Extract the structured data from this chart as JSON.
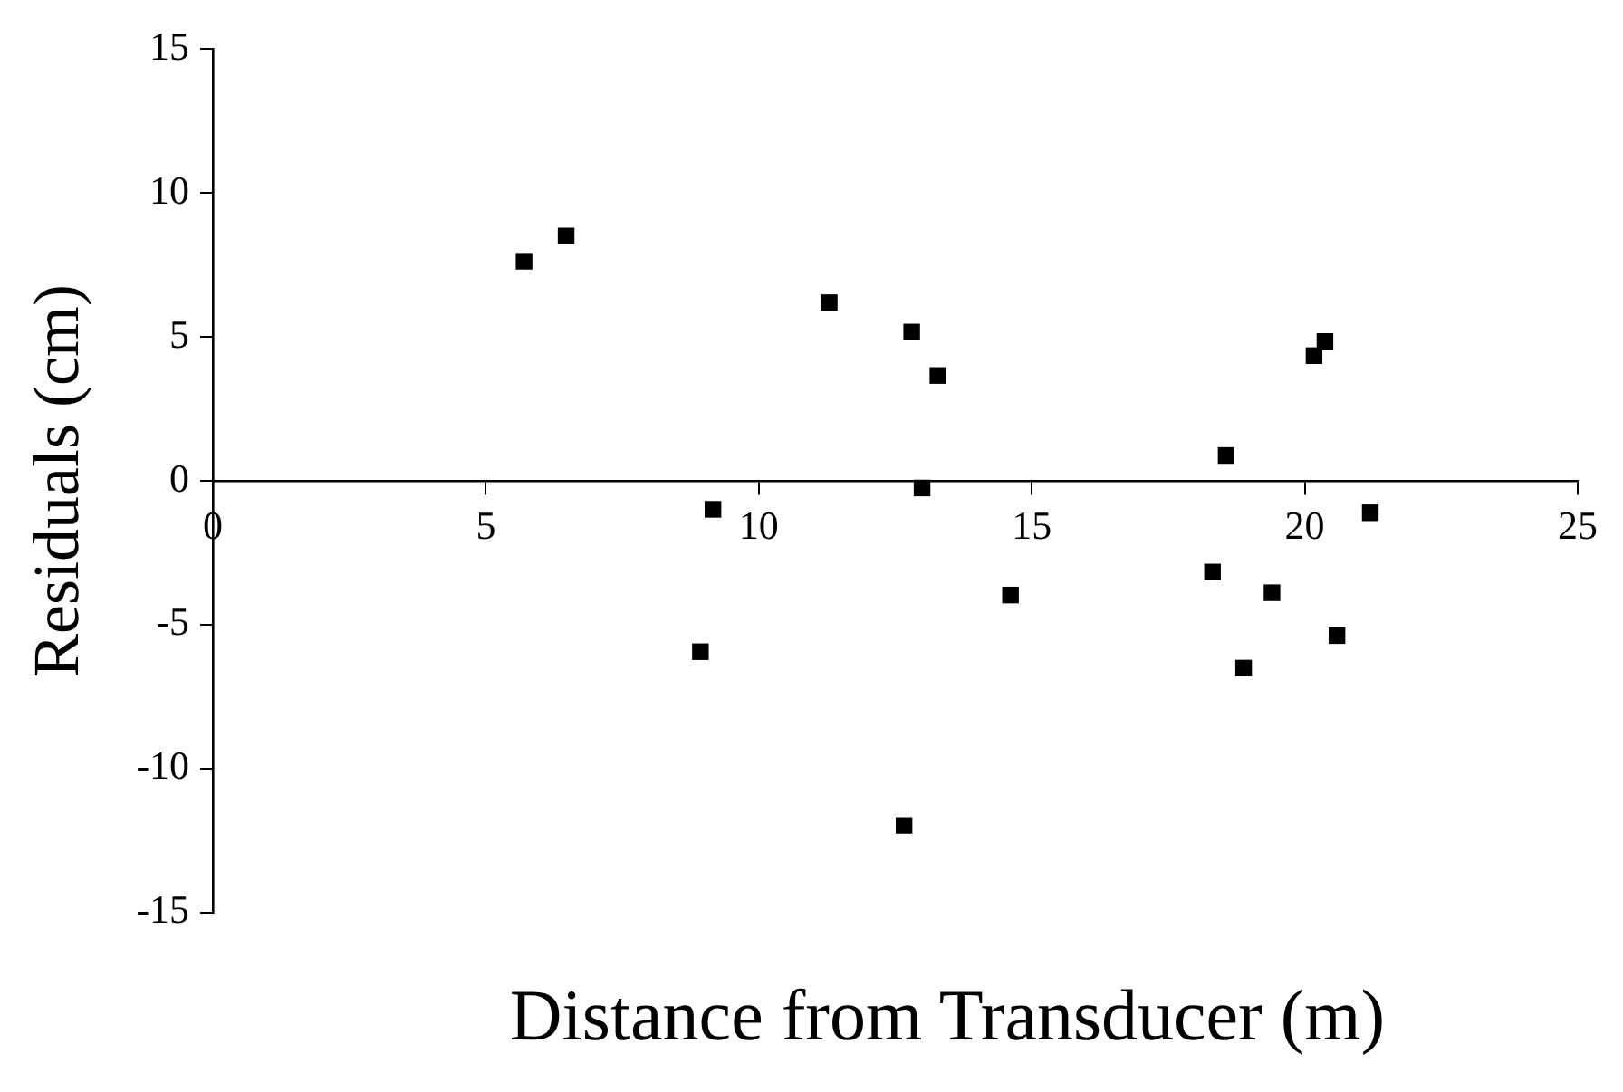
{
  "chart_data": {
    "type": "scatter",
    "xlabel": "Distance from Transducer (m)",
    "ylabel": "Residuals (cm)",
    "marker": "square",
    "grid": false,
    "legend": false,
    "xlim": [
      0,
      25
    ],
    "xticks": [
      0,
      5,
      10,
      15,
      20,
      25
    ],
    "ylim": [
      -15,
      15
    ],
    "yticks": [
      -15,
      -10,
      -5,
      0,
      5,
      10,
      15
    ],
    "series": [
      {
        "color": "#000000",
        "x": [
          5.7,
          6.47,
          11.29,
          9.16,
          8.93,
          12.8,
          13.28,
          12.99,
          12.66,
          14.61,
          18.56,
          18.31,
          19.4,
          18.88,
          20.59,
          21.2,
          20.17,
          20.37
        ],
        "values": [
          7.63,
          8.51,
          6.19,
          -0.99,
          -5.94,
          5.17,
          3.66,
          -0.25,
          -11.98,
          -3.97,
          0.88,
          -3.17,
          -3.89,
          -6.51,
          -5.38,
          -1.11,
          4.35,
          4.84
        ]
      }
    ]
  }
}
